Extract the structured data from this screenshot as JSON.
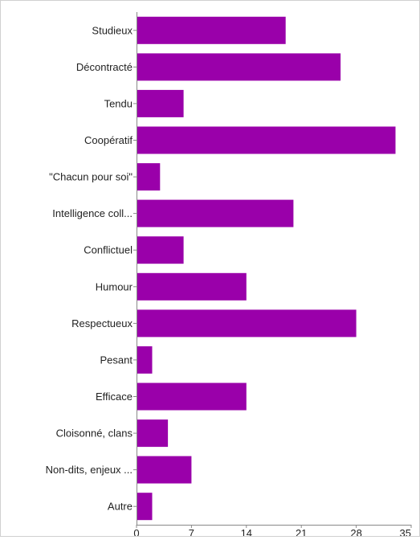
{
  "chart_data": {
    "type": "bar",
    "orientation": "horizontal",
    "categories": [
      "Studieux",
      "Décontracté",
      "Tendu",
      "Coopératif",
      "\"Chacun pour soi\"",
      "Intelligence coll...",
      "Conflictuel",
      "Humour",
      "Respectueux",
      "Pesant",
      "Efficace",
      "Cloisonné, clans",
      "Non-dits, enjeux ...",
      "Autre"
    ],
    "values": [
      19,
      26,
      6,
      33,
      3,
      20,
      6,
      14,
      28,
      2,
      14,
      4,
      7,
      2
    ],
    "xlim": [
      0,
      35
    ],
    "xticks": [
      0,
      7,
      14,
      21,
      28,
      35
    ],
    "bar_color": "#9a00aa",
    "grid": false,
    "legend": "none",
    "title": "",
    "xlabel": "",
    "ylabel": ""
  }
}
